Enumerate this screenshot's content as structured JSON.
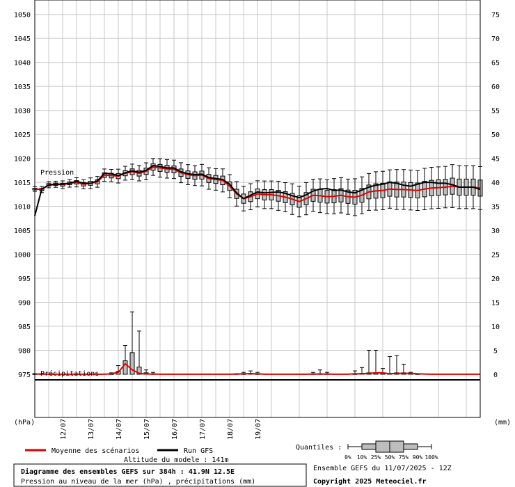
{
  "chart_data": {
    "type": "boxplot-ensemble",
    "left_axis": {
      "unit_label": "(hPa)",
      "ticks": [
        975,
        980,
        985,
        990,
        995,
        1000,
        1005,
        1010,
        1015,
        1020,
        1025,
        1030,
        1035,
        1040,
        1045,
        1050
      ],
      "range": [
        966,
        1053
      ]
    },
    "right_axis": {
      "unit_label": "(mm)",
      "ticks": [
        0,
        5,
        10,
        15,
        20,
        25,
        30,
        35,
        40,
        45,
        50,
        55,
        60,
        65,
        70,
        75
      ]
    },
    "x_axis": {
      "labels": [
        "12/07",
        "13/07",
        "14/07",
        "15/07",
        "16/07",
        "17/07",
        "18/07",
        "19/07"
      ],
      "hours_range": [
        0,
        384
      ]
    },
    "panel_labels": {
      "pressure": "Pression",
      "precip": "Précipitations"
    },
    "legend": {
      "mean_label": "Moyenne des scénarios",
      "run_label": "Run GFS",
      "mean_color": "#e00000",
      "run_color": "#000000",
      "quantiles_label": "Quantiles :",
      "quantile_ticks": [
        "0%",
        "10%",
        "25%",
        "50%",
        "75%",
        "90%",
        "100%"
      ]
    },
    "altitude_text": "Altitude du modele : 141m",
    "title_main": "Diagramme des ensembles GEFS sur 384h : 41.9N 12.5E",
    "title_sub": "Pression au niveau de la mer (hPa) , précipitations (mm)",
    "run_info": "Ensemble GEFS du 11/07/2025 - 12Z",
    "copyright": "Copyright 2025 Meteociel.fr",
    "pressure_series": {
      "hours": [
        0,
        6,
        12,
        18,
        24,
        30,
        36,
        42,
        48,
        54,
        60,
        66,
        72,
        78,
        84,
        90,
        96,
        102,
        108,
        114,
        120,
        126,
        132,
        138,
        144,
        150,
        156,
        162,
        168,
        174,
        180,
        186,
        192,
        198,
        204,
        210,
        216,
        222,
        228,
        234,
        240,
        246,
        252,
        258,
        264,
        270,
        276,
        282,
        288,
        294,
        300,
        306,
        312,
        318,
        324,
        330,
        336,
        342,
        348,
        354,
        360,
        366,
        372,
        378,
        384
      ],
      "gfs_run": [
        1008,
        1013.6,
        1014.4,
        1014.6,
        1014.6,
        1014.8,
        1015.2,
        1014.8,
        1014.8,
        1015.3,
        1016.9,
        1016.8,
        1016.4,
        1017.0,
        1017.4,
        1017.1,
        1017.5,
        1018.5,
        1018.3,
        1018.0,
        1018.0,
        1017.2,
        1016.8,
        1016.6,
        1016.7,
        1016.0,
        1015.8,
        1015.6,
        1014.6,
        1012.8,
        1011.6,
        1012.3,
        1013.0,
        1012.8,
        1012.9,
        1013.0,
        1012.7,
        1012.2,
        1011.8,
        1012.4,
        1013.2,
        1013.6,
        1013.7,
        1013.3,
        1013.4,
        1013.0,
        1012.8,
        1013.4,
        1014.0,
        1014.4,
        1014.6,
        1015.0,
        1014.8,
        1014.4,
        1014.2,
        1014.6,
        1015.0,
        1015.0,
        1014.8,
        1014.8,
        1014.5,
        1014.0,
        1014.0,
        1014.0,
        1013.5
      ],
      "mean": [
        1013.6,
        1013.5,
        1014.5,
        1014.6,
        1014.5,
        1014.8,
        1015.0,
        1014.6,
        1014.8,
        1015.1,
        1016.5,
        1016.4,
        1016.3,
        1016.9,
        1017.2,
        1016.9,
        1017.3,
        1018.2,
        1018.0,
        1017.8,
        1017.7,
        1017.0,
        1016.6,
        1016.4,
        1016.5,
        1015.8,
        1015.6,
        1015.4,
        1014.2,
        1012.6,
        1011.6,
        1012.0,
        1012.6,
        1012.4,
        1012.4,
        1012.2,
        1011.9,
        1011.5,
        1011.0,
        1011.6,
        1012.3,
        1012.2,
        1012.0,
        1012.1,
        1012.3,
        1012.0,
        1011.9,
        1012.3,
        1013.0,
        1013.2,
        1013.3,
        1013.6,
        1013.5,
        1013.5,
        1013.4,
        1013.3,
        1013.6,
        1013.8,
        1013.9,
        1014.0,
        1014.2,
        1014.0,
        1014.0,
        1014.0,
        1013.8
      ],
      "spread": [
        0.3,
        0.4,
        0.4,
        0.4,
        0.5,
        0.5,
        0.6,
        0.6,
        0.7,
        0.7,
        0.8,
        0.8,
        0.9,
        0.9,
        1.0,
        1.0,
        1.1,
        1.1,
        1.2,
        1.2,
        1.2,
        1.3,
        1.3,
        1.3,
        1.4,
        1.4,
        1.4,
        1.5,
        1.5,
        1.6,
        1.6,
        1.7,
        1.7,
        1.8,
        1.8,
        1.9,
        1.9,
        2.0,
        2.0,
        2.1,
        2.1,
        2.2,
        2.2,
        2.3,
        2.3,
        2.3,
        2.4,
        2.4,
        2.4,
        2.5,
        2.5,
        2.5,
        2.6,
        2.6,
        2.6,
        2.6,
        2.7,
        2.7,
        2.7,
        2.7,
        2.8,
        2.8,
        2.8,
        2.8,
        2.8
      ]
    },
    "precip_series": {
      "hours": [
        0,
        6,
        12,
        18,
        24,
        30,
        36,
        42,
        48,
        54,
        60,
        66,
        72,
        78,
        84,
        90,
        96,
        102,
        108,
        114,
        120,
        126,
        132,
        138,
        144,
        150,
        156,
        162,
        168,
        174,
        180,
        186,
        192,
        198,
        204,
        210,
        216,
        222,
        228,
        234,
        240,
        246,
        252,
        258,
        264,
        270,
        276,
        282,
        288,
        294,
        300,
        306,
        312,
        318,
        324,
        330,
        336,
        342,
        348,
        354,
        360,
        366,
        372,
        378,
        384
      ],
      "mean": [
        0.05,
        0.05,
        0,
        0,
        0,
        0,
        0,
        0,
        0,
        0,
        0,
        0.1,
        0.4,
        2.2,
        0.9,
        0.2,
        0.05,
        0.05,
        0,
        0,
        0,
        0,
        0,
        0,
        0,
        0,
        0,
        0,
        0,
        0.05,
        0.1,
        0.1,
        0.1,
        0,
        0,
        0,
        0,
        0,
        0,
        0,
        0.05,
        0.05,
        0.05,
        0,
        0,
        0,
        0.1,
        0.1,
        0.2,
        0.3,
        0.3,
        0.1,
        0.2,
        0.2,
        0.2,
        0.1,
        0.05,
        0,
        0,
        0,
        0,
        0,
        0,
        0,
        0
      ],
      "max": [
        0.1,
        0.1,
        0,
        0,
        0,
        0,
        0,
        0,
        0,
        0,
        0,
        0.3,
        1.8,
        6,
        13,
        9,
        0.9,
        0.4,
        0,
        0,
        0,
        0,
        0,
        0,
        0,
        0,
        0,
        0,
        0,
        0.1,
        0.4,
        0.7,
        0.4,
        0,
        0,
        0,
        0,
        0,
        0,
        0,
        0.4,
        0.9,
        0.4,
        0,
        0,
        0,
        0.7,
        1.4,
        5,
        5,
        1.2,
        3.7,
        3.9,
        2.1,
        0.4,
        0.1,
        0,
        0,
        0,
        0,
        0,
        0,
        0,
        0,
        0
      ],
      "q75": [
        0.1,
        0.1,
        0,
        0,
        0,
        0,
        0,
        0,
        0,
        0,
        0,
        0.1,
        0.6,
        2.8,
        4.5,
        1.5,
        0.3,
        0.1,
        0,
        0,
        0,
        0,
        0,
        0,
        0,
        0,
        0,
        0,
        0,
        0.1,
        0.1,
        0.2,
        0.1,
        0,
        0,
        0,
        0,
        0,
        0,
        0,
        0.1,
        0.1,
        0.1,
        0,
        0,
        0,
        0.1,
        0.2,
        0.3,
        0.3,
        0.2,
        0.2,
        0.3,
        0.3,
        0.2,
        0.1,
        0,
        0,
        0,
        0,
        0,
        0,
        0,
        0,
        0
      ]
    }
  }
}
